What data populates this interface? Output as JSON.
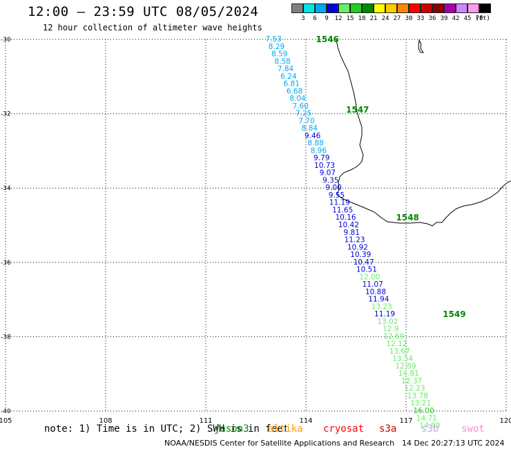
{
  "header": {
    "title": "12:00 — 23:59 UTC 08/05/2024",
    "subtitle": "12 hour collection of altimeter wave heights"
  },
  "legend": {
    "unit_label": "(ft)",
    "bins": [
      {
        "label": "3",
        "color": "#808080"
      },
      {
        "label": "6",
        "color": "#00e5e5"
      },
      {
        "label": "9",
        "color": "#00a8f0"
      },
      {
        "label": "12",
        "color": "#0000d8"
      },
      {
        "label": "15",
        "color": "#66ee66"
      },
      {
        "label": "18",
        "color": "#22cc22"
      },
      {
        "label": "21",
        "color": "#008800"
      },
      {
        "label": "24",
        "color": "#ffff00"
      },
      {
        "label": "27",
        "color": "#ffcc00"
      },
      {
        "label": "30",
        "color": "#ff8800"
      },
      {
        "label": "33",
        "color": "#ff0000"
      },
      {
        "label": "36",
        "color": "#cc0000"
      },
      {
        "label": "39",
        "color": "#880000"
      },
      {
        "label": "42",
        "color": "#aa00aa"
      },
      {
        "label": "45",
        "color": "#cc88ff"
      },
      {
        "label": "70",
        "color": "#ff99ee"
      },
      {
        "label": "",
        "color": "#000000"
      }
    ]
  },
  "map": {
    "lon_range": [
      105,
      120
    ],
    "lat_range": [
      -40,
      -30
    ],
    "lon_ticks": [
      "105",
      "108",
      "111",
      "114",
      "117",
      "120"
    ],
    "lat_ticks": [
      "-30",
      "-32",
      "-34",
      "-36",
      "-38",
      "-40"
    ],
    "pass_labels": [
      {
        "text": "1546",
        "lon": 114.3,
        "lat": -30.0
      },
      {
        "text": "1547",
        "lon": 115.2,
        "lat": -31.9
      },
      {
        "text": "1548",
        "lon": 116.7,
        "lat": -34.8
      },
      {
        "text": "1549",
        "lon": 118.1,
        "lat": -37.4
      }
    ],
    "pass_label_color": "#008800",
    "track": [
      {
        "v": "7.53",
        "lon": 113.03,
        "lat": -30.0
      },
      {
        "v": "8.29",
        "lon": 113.12,
        "lat": -30.2
      },
      {
        "v": "8.59",
        "lon": 113.21,
        "lat": -30.4
      },
      {
        "v": "8.58",
        "lon": 113.3,
        "lat": -30.6
      },
      {
        "v": "7.84",
        "lon": 113.39,
        "lat": -30.8
      },
      {
        "v": "6.24",
        "lon": 113.48,
        "lat": -31.0
      },
      {
        "v": "6.81",
        "lon": 113.57,
        "lat": -31.2
      },
      {
        "v": "6.68",
        "lon": 113.66,
        "lat": -31.4
      },
      {
        "v": "8.04",
        "lon": 113.75,
        "lat": -31.6
      },
      {
        "v": "7.60",
        "lon": 113.84,
        "lat": -31.8
      },
      {
        "v": "7.25",
        "lon": 113.93,
        "lat": -32.0
      },
      {
        "v": "7.70",
        "lon": 114.02,
        "lat": -32.2
      },
      {
        "v": "8.84",
        "lon": 114.11,
        "lat": -32.4
      },
      {
        "v": "9.46",
        "lon": 114.2,
        "lat": -32.6
      },
      {
        "v": "8.88",
        "lon": 114.29,
        "lat": -32.8
      },
      {
        "v": "8.96",
        "lon": 114.38,
        "lat": -33.0
      },
      {
        "v": "9.79",
        "lon": 114.47,
        "lat": -33.2
      },
      {
        "v": "10.73",
        "lon": 114.56,
        "lat": -33.4
      },
      {
        "v": "9.07",
        "lon": 114.65,
        "lat": -33.6
      },
      {
        "v": "9.35",
        "lon": 114.74,
        "lat": -33.8
      },
      {
        "v": "9.00",
        "lon": 114.83,
        "lat": -34.0
      },
      {
        "v": "9.55",
        "lon": 114.92,
        "lat": -34.2
      },
      {
        "v": "11.19",
        "lon": 115.01,
        "lat": -34.4
      },
      {
        "v": "11.65",
        "lon": 115.1,
        "lat": -34.6
      },
      {
        "v": "10.16",
        "lon": 115.19,
        "lat": -34.8
      },
      {
        "v": "10.42",
        "lon": 115.28,
        "lat": -35.0
      },
      {
        "v": "9.81",
        "lon": 115.37,
        "lat": -35.2
      },
      {
        "v": "11.23",
        "lon": 115.46,
        "lat": -35.4
      },
      {
        "v": "10.92",
        "lon": 115.55,
        "lat": -35.6
      },
      {
        "v": "10.39",
        "lon": 115.64,
        "lat": -35.8
      },
      {
        "v": "10.47",
        "lon": 115.73,
        "lat": -36.0
      },
      {
        "v": "10.51",
        "lon": 115.82,
        "lat": -36.2
      },
      {
        "v": "12.00",
        "lon": 115.91,
        "lat": -36.4
      },
      {
        "v": "11.07",
        "lon": 116.0,
        "lat": -36.6
      },
      {
        "v": "10.88",
        "lon": 116.09,
        "lat": -36.8
      },
      {
        "v": "11.94",
        "lon": 116.18,
        "lat": -37.0
      },
      {
        "v": "13.23",
        "lon": 116.27,
        "lat": -37.2
      },
      {
        "v": "11.19",
        "lon": 116.36,
        "lat": -37.4
      },
      {
        "v": "13.02",
        "lon": 116.45,
        "lat": -37.6
      },
      {
        "v": "12.9",
        "lon": 116.54,
        "lat": -37.8
      },
      {
        "v": "12.69",
        "lon": 116.63,
        "lat": -38.0
      },
      {
        "v": "12.12",
        "lon": 116.72,
        "lat": -38.2
      },
      {
        "v": "13.67",
        "lon": 116.81,
        "lat": -38.4
      },
      {
        "v": "13.54",
        "lon": 116.9,
        "lat": -38.6
      },
      {
        "v": "12.89",
        "lon": 116.99,
        "lat": -38.8
      },
      {
        "v": "14.81",
        "lon": 117.08,
        "lat": -39.0
      },
      {
        "v": "12.37",
        "lon": 117.17,
        "lat": -39.2
      },
      {
        "v": "12.23",
        "lon": 117.26,
        "lat": -39.4
      },
      {
        "v": "13.78",
        "lon": 117.35,
        "lat": -39.6
      },
      {
        "v": "13.21",
        "lon": 117.44,
        "lat": -39.8
      },
      {
        "v": "16.00",
        "lon": 117.53,
        "lat": -40.0
      },
      {
        "v": "14.71",
        "lon": 117.62,
        "lat": -40.2
      },
      {
        "v": "14.99",
        "lon": 117.71,
        "lat": -40.4
      }
    ]
  },
  "footer": {
    "note": "note: 1) Time is in UTC; 2) SWH is in feet",
    "satellites": [
      {
        "label": "jason3",
        "color": "#008800"
      },
      {
        "label": "altika",
        "color": "#ff9900"
      },
      {
        "label": "cryosat",
        "color": "#ff0000"
      },
      {
        "label": "s3a",
        "color": "#cc0000"
      },
      {
        "label": "s3b",
        "color": "#bbaaee"
      },
      {
        "label": "swot",
        "color": "#ff88dd"
      }
    ],
    "credit": "NOAA/NESDIS Center for Satellite Applications and Research",
    "timestamp": "14 Dec 20:27:13 UTC 2024"
  }
}
